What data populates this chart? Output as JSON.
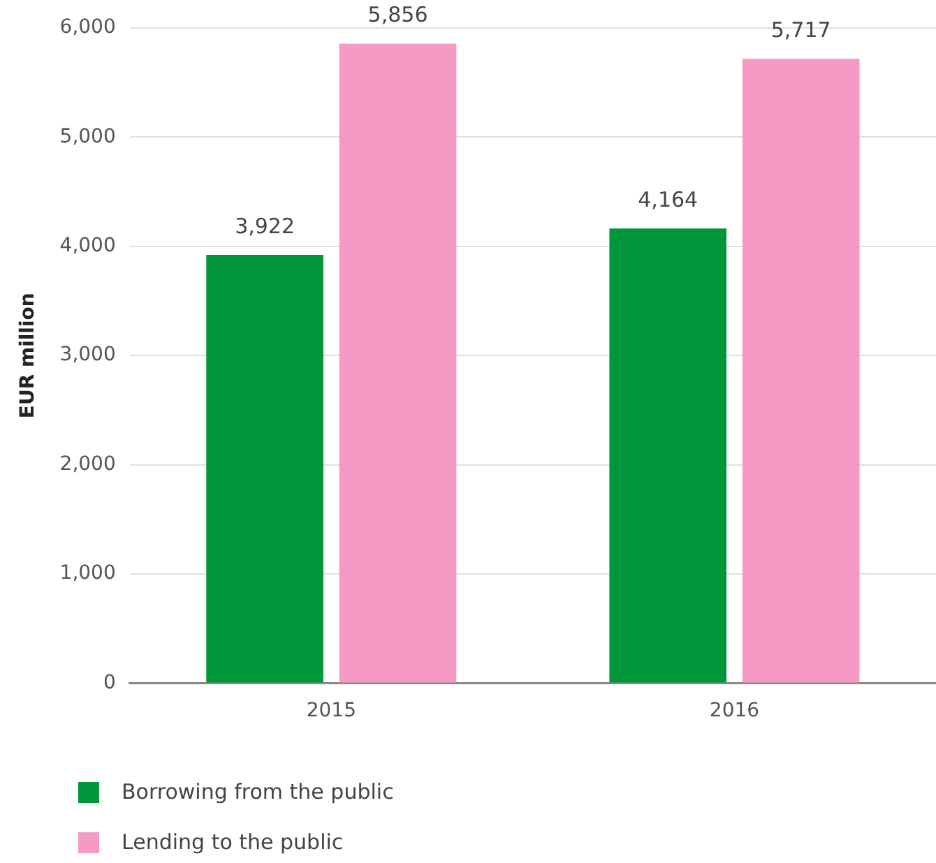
{
  "chart_data": {
    "type": "bar",
    "ylabel": "EUR million",
    "categories": [
      "2015",
      "2016"
    ],
    "series": [
      {
        "name": "Borrowing from the public",
        "color": "#00963a",
        "values": [
          3922,
          4164
        ],
        "value_labels": [
          "3,922",
          "4,164"
        ]
      },
      {
        "name": "Lending to the public",
        "color": "#f49ac4",
        "values": [
          5856,
          5717
        ],
        "value_labels": [
          "5,856",
          "5,717"
        ]
      }
    ],
    "ylim": [
      0,
      6000
    ],
    "yticks": [
      {
        "value": 0,
        "label": "0"
      },
      {
        "value": 1000,
        "label": "1,000"
      },
      {
        "value": 2000,
        "label": "2,000"
      },
      {
        "value": 3000,
        "label": "3,000"
      },
      {
        "value": 4000,
        "label": "4,000"
      },
      {
        "value": 5000,
        "label": "5,000"
      },
      {
        "value": 6000,
        "label": "6,000"
      }
    ],
    "grid": "y",
    "legend": "bottom left"
  }
}
